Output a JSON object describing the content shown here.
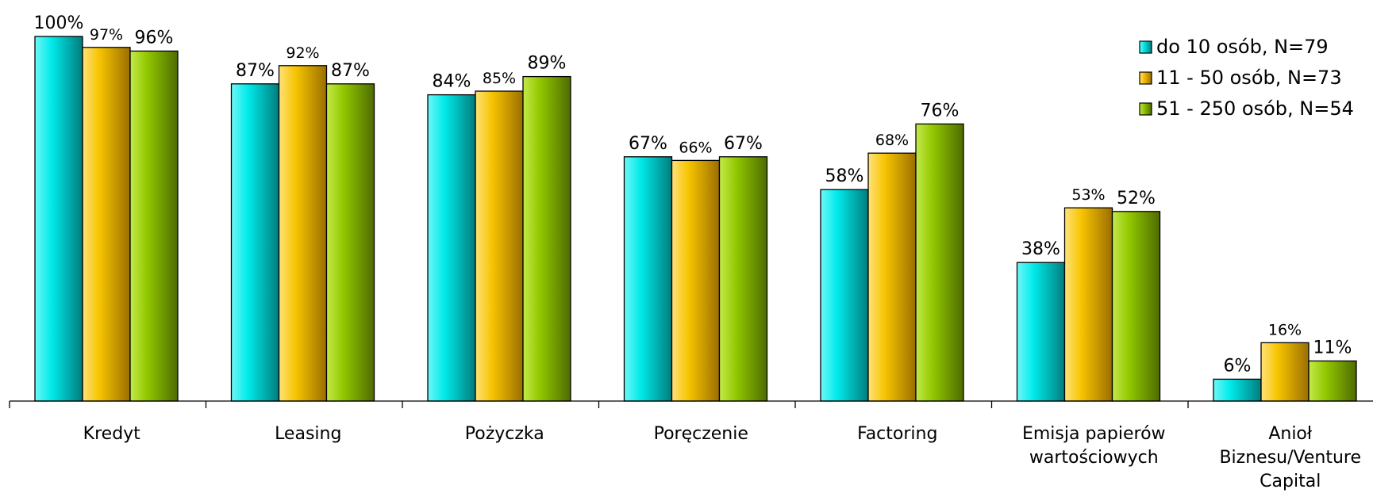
{
  "chart_data": {
    "type": "bar",
    "title": "",
    "xlabel": "",
    "ylabel": "",
    "ylim": [
      0,
      100
    ],
    "grid": false,
    "legend_position": "top-right",
    "categories": [
      [
        "Kredyt"
      ],
      [
        "Leasing"
      ],
      [
        "Pożyczka"
      ],
      [
        "Poręczenie"
      ],
      [
        "Factoring"
      ],
      [
        "Emisja papierów",
        "wartościowych"
      ],
      [
        "Anioł",
        "Biznesu/Venture",
        "Capital"
      ]
    ],
    "series": [
      {
        "name": "do 10 osób, N=79",
        "color": "#00e5e5",
        "values": [
          100,
          87,
          84,
          67,
          58,
          38,
          6
        ],
        "labels": [
          "100%",
          "87%",
          "84%",
          "67%",
          "58%",
          "38%",
          "6%"
        ]
      },
      {
        "name": "11 - 50 osób, N=73",
        "color": "#f5c200",
        "values": [
          97,
          92,
          85,
          66,
          68,
          53,
          16
        ],
        "labels": [
          "97%",
          "92%",
          "85%",
          "66%",
          "68%",
          "53%",
          "16%"
        ]
      },
      {
        "name": "51 - 250 osób, N=54",
        "color": "#8fc400",
        "values": [
          96,
          87,
          89,
          67,
          76,
          52,
          11
        ],
        "labels": [
          "96%",
          "87%",
          "89%",
          "67%",
          "76%",
          "52%",
          "11%"
        ]
      }
    ],
    "small_labels": [
      "97%",
      "92%",
      "85%",
      "66%",
      "68%",
      "53%",
      "16%"
    ]
  }
}
